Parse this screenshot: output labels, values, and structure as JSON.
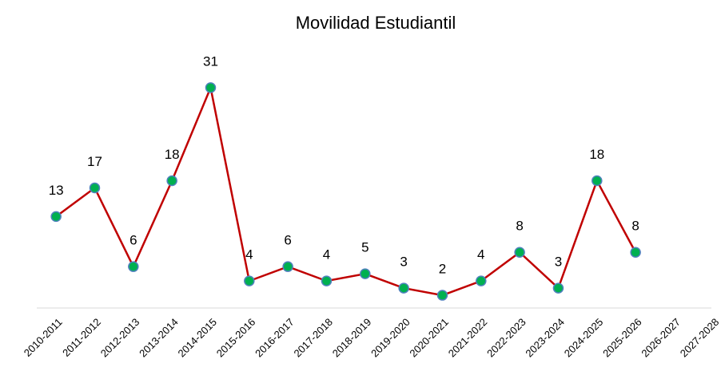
{
  "chart_data": {
    "type": "line",
    "title": "Movilidad Estudiantil",
    "categories": [
      "2010-2011",
      "2011-2012",
      "2012-2013",
      "2013-2014",
      "2014-2015",
      "2015-2016",
      "2016-2017",
      "2017-2018",
      "2018-2019",
      "2019-2020",
      "2020-2021",
      "2021-2022",
      "2022-2023",
      "2023-2024",
      "2024-2025",
      "2025-2026",
      "2026-2027",
      "2027-2028"
    ],
    "values": [
      13,
      17,
      6,
      18,
      31,
      4,
      6,
      4,
      5,
      3,
      2,
      4,
      8,
      3,
      18,
      8,
      null,
      null
    ],
    "color": "#c00000",
    "marker_color": "#00b050",
    "marker_edge": "#4f81bd",
    "ylim": [
      0,
      35
    ]
  }
}
